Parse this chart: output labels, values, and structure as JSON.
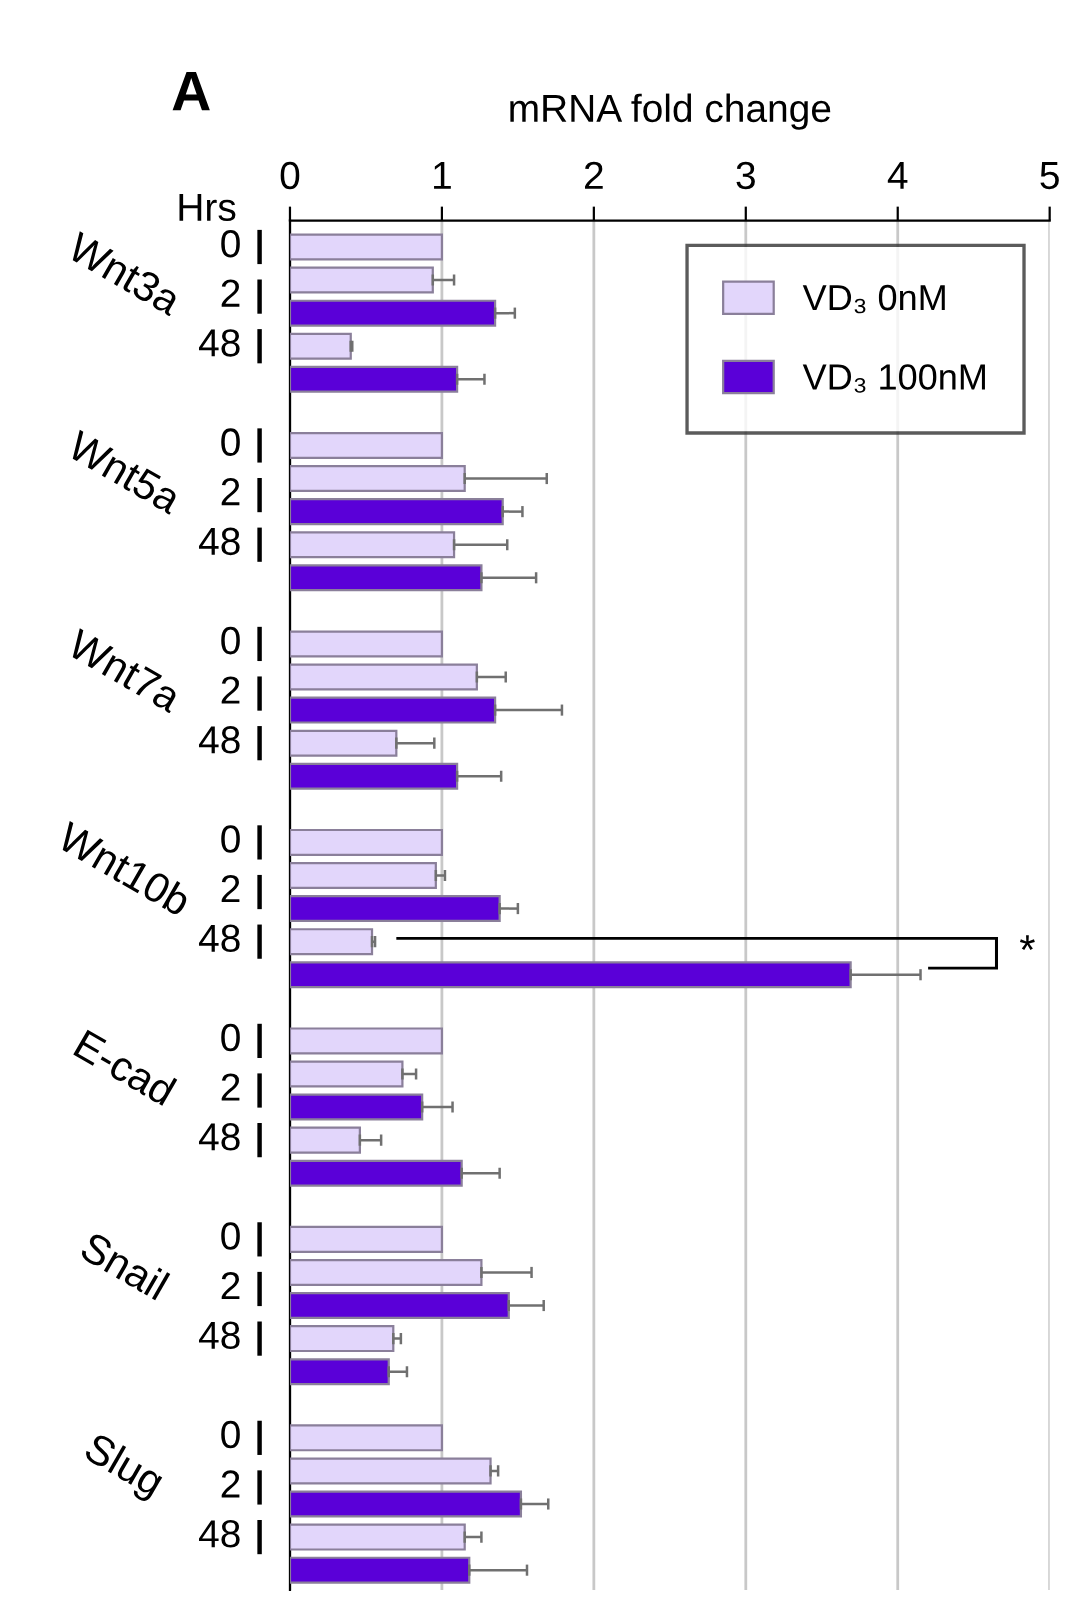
{
  "chart_data": {
    "type": "bar",
    "orientation": "horizontal",
    "title": "A",
    "xlabel": "mRNA fold change",
    "categories": [
      "0",
      "2",
      null,
      "48",
      null,
      null,
      "0",
      "2",
      null,
      "48",
      null,
      null,
      "0",
      "2",
      null,
      "48",
      null,
      null,
      "0",
      "2",
      null,
      "48",
      null,
      null,
      "0",
      "2",
      null,
      "48",
      null,
      null,
      "0",
      "2",
      null,
      "48",
      null,
      null,
      "0",
      "2",
      null,
      "48",
      null
    ],
    "series": [
      {
        "name": "VD₃ 0nM",
        "color": "#e2d6fb",
        "values": [
          1.0,
          0.94,
          null,
          0.4,
          null,
          null,
          1.0,
          1.15,
          null,
          1.08,
          null,
          null,
          1.0,
          1.23,
          null,
          0.7,
          null,
          null,
          1.0,
          0.96,
          null,
          0.54,
          null,
          null,
          1.0,
          0.74,
          null,
          0.46,
          null,
          null,
          1.0,
          1.26,
          null,
          0.68,
          null,
          null,
          1.0,
          1.32,
          null,
          1.15,
          null
        ],
        "errors": [
          null,
          [
            0.94,
            1.08
          ],
          null,
          [
            0.4,
            0.41
          ],
          null,
          null,
          null,
          [
            1.15,
            1.69
          ],
          null,
          [
            1.08,
            1.43
          ],
          null,
          null,
          null,
          [
            1.23,
            1.42
          ],
          null,
          [
            0.7,
            0.95
          ],
          null,
          null,
          null,
          [
            0.96,
            1.02
          ],
          null,
          [
            0.54,
            0.56
          ],
          null,
          null,
          null,
          [
            0.74,
            0.83
          ],
          null,
          [
            0.46,
            0.6
          ],
          null,
          null,
          null,
          [
            1.26,
            1.59
          ],
          null,
          [
            0.68,
            0.73
          ],
          null,
          null,
          null,
          [
            1.32,
            1.37
          ],
          null,
          [
            1.15,
            1.26
          ],
          null
        ]
      },
      {
        "name": "VD₃ 100nM",
        "color": "#5a00d8",
        "values": [
          null,
          null,
          1.35,
          null,
          1.1,
          null,
          null,
          null,
          1.4,
          null,
          1.26,
          null,
          null,
          null,
          1.35,
          null,
          1.1,
          null,
          null,
          null,
          1.38,
          null,
          3.69,
          null,
          null,
          null,
          0.87,
          null,
          1.13,
          null,
          null,
          null,
          1.44,
          null,
          0.65,
          null,
          null,
          null,
          1.52,
          null,
          1.18
        ],
        "errors": [
          null,
          null,
          [
            1.35,
            1.48
          ],
          null,
          [
            1.1,
            1.28
          ],
          null,
          null,
          null,
          [
            1.4,
            1.53
          ],
          null,
          [
            1.26,
            1.62
          ],
          null,
          null,
          null,
          [
            1.35,
            1.79
          ],
          null,
          [
            1.1,
            1.39
          ],
          null,
          null,
          null,
          [
            1.38,
            1.5
          ],
          null,
          [
            3.69,
            4.15
          ],
          null,
          null,
          null,
          [
            0.87,
            1.07
          ],
          null,
          [
            1.13,
            1.38
          ],
          null,
          null,
          null,
          [
            1.44,
            1.67
          ],
          null,
          [
            0.65,
            0.77
          ],
          null,
          null,
          null,
          [
            1.52,
            1.7
          ],
          null,
          [
            1.18,
            1.56
          ]
        ]
      }
    ],
    "annotations": [
      "Hrs",
      "Wnt3a",
      "Wnt5a",
      "Wnt7a",
      "Wnt10b",
      "E-cad",
      "Snail",
      "Slug",
      "*"
    ],
    "xlim": [
      0,
      5
    ],
    "xticks": [
      0,
      1,
      2,
      3,
      4,
      5
    ],
    "grid": "x",
    "legend": "top right"
  }
}
